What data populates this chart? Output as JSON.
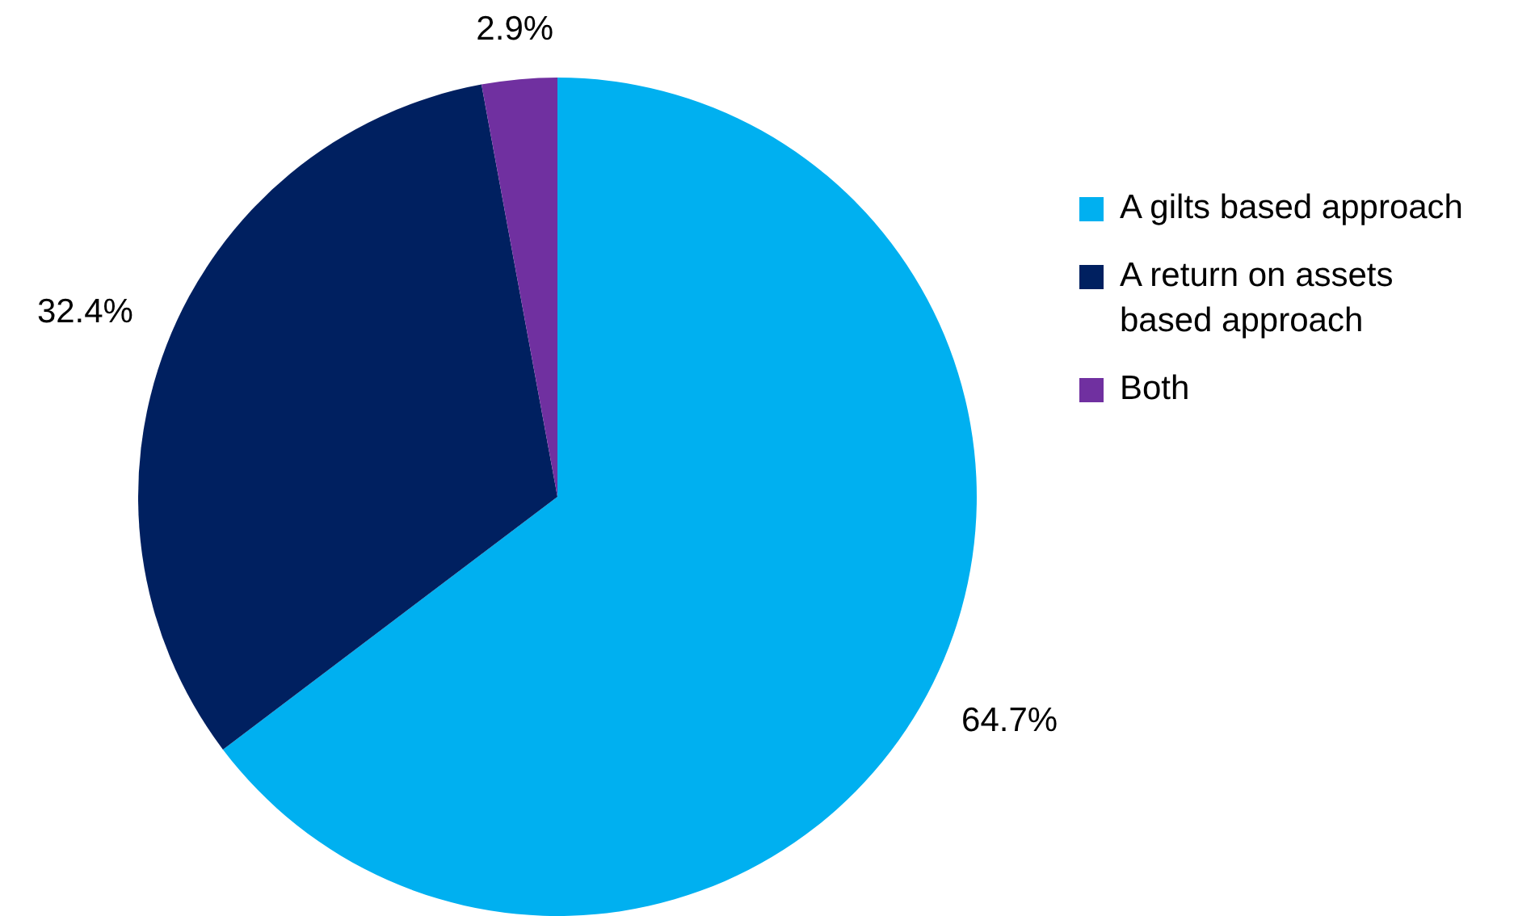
{
  "chart_data": {
    "type": "pie",
    "categories": [
      "A gilts based approach",
      "A return on assets based approach",
      "Both"
    ],
    "values": [
      64.7,
      32.4,
      2.9
    ],
    "colors": [
      "#00b0f0",
      "#002060",
      "#7030a0"
    ],
    "value_labels": [
      "64.7%",
      "32.4%",
      "2.9%"
    ],
    "legend": "right"
  }
}
